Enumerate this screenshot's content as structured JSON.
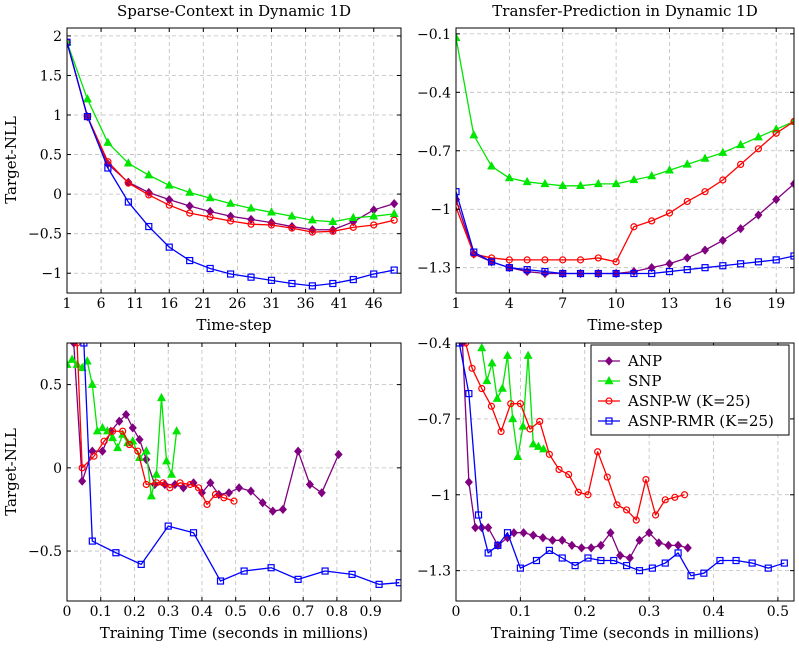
{
  "colors": {
    "ANP": "#800080",
    "SNP": "#00e600",
    "ASNP-W (K=25)": "#ff0000",
    "ASNP-RMR (K=25)": "#0000ff"
  },
  "legend": {
    "position": "top-right of bottom-right panel",
    "entries": [
      {
        "name": "ANP",
        "marker": "diamond"
      },
      {
        "name": "SNP",
        "marker": "triangle"
      },
      {
        "name": "ASNP-W (K=25)",
        "marker": "circle"
      },
      {
        "name": "ASNP-RMR (K=25)",
        "marker": "square"
      }
    ]
  },
  "chart_data": [
    {
      "id": "tl",
      "type": "line",
      "title": "Sparse-Context in Dynamic 1D",
      "xlabel": "Time-step",
      "ylabel": "Target-NLL",
      "xlim": [
        1,
        50
      ],
      "ylim": [
        -1.25,
        2.1
      ],
      "xticks": [
        1,
        6,
        11,
        16,
        21,
        26,
        31,
        36,
        41,
        46
      ],
      "xtick_labels": [
        "1",
        "6",
        "11",
        "16",
        "21",
        "26",
        "31",
        "36",
        "41",
        "46"
      ],
      "yticks": [
        -1,
        -0.5,
        0,
        0.5,
        1,
        1.5,
        2
      ],
      "ytick_labels": [
        "−1",
        "−0.5",
        "0",
        "0.5",
        "1",
        "1.5",
        "2"
      ],
      "grid": true,
      "series": [
        {
          "name": "ANP",
          "x": [
            1,
            4,
            7,
            10,
            13,
            16,
            19,
            22,
            25,
            28,
            31,
            34,
            37,
            40,
            43,
            46,
            49
          ],
          "y": [
            1.92,
            0.98,
            0.38,
            0.15,
            0.02,
            -0.07,
            -0.15,
            -0.22,
            -0.28,
            -0.32,
            -0.36,
            -0.41,
            -0.45,
            -0.45,
            -0.35,
            -0.2,
            -0.12
          ]
        },
        {
          "name": "SNP",
          "x": [
            1,
            4,
            7,
            10,
            13,
            16,
            19,
            22,
            25,
            28,
            31,
            34,
            37,
            40,
            43,
            46,
            49
          ],
          "y": [
            1.92,
            1.2,
            0.65,
            0.39,
            0.24,
            0.11,
            0.02,
            -0.05,
            -0.12,
            -0.18,
            -0.23,
            -0.28,
            -0.33,
            -0.35,
            -0.3,
            -0.28,
            -0.25
          ]
        },
        {
          "name": "ASNP-W (K=25)",
          "x": [
            1,
            4,
            7,
            10,
            13,
            16,
            19,
            22,
            25,
            28,
            31,
            34,
            37,
            40,
            43,
            46,
            49
          ],
          "y": [
            1.92,
            0.98,
            0.41,
            0.14,
            -0.01,
            -0.14,
            -0.24,
            -0.29,
            -0.34,
            -0.38,
            -0.39,
            -0.43,
            -0.48,
            -0.47,
            -0.42,
            -0.39,
            -0.33
          ]
        },
        {
          "name": "ASNP-RMR (K=25)",
          "x": [
            1,
            4,
            7,
            10,
            13,
            16,
            19,
            22,
            25,
            28,
            31,
            34,
            37,
            40,
            43,
            46,
            49
          ],
          "y": [
            1.92,
            0.98,
            0.33,
            -0.1,
            -0.41,
            -0.67,
            -0.84,
            -0.94,
            -1.01,
            -1.05,
            -1.09,
            -1.13,
            -1.16,
            -1.13,
            -1.08,
            -1.01,
            -0.96
          ]
        }
      ]
    },
    {
      "id": "tr",
      "type": "line",
      "title": "Transfer-Prediction in Dynamic 1D",
      "xlabel": "Time-step",
      "ylabel": "",
      "xlim": [
        1,
        20
      ],
      "ylim": [
        -1.43,
        -0.07
      ],
      "xticks": [
        1,
        4,
        7,
        10,
        13,
        16,
        19
      ],
      "xtick_labels": [
        "1",
        "4",
        "7",
        "10",
        "13",
        "16",
        "19"
      ],
      "yticks": [
        -1.3,
        -1,
        -0.7,
        -0.4,
        -0.1
      ],
      "ytick_labels": [
        "−1.3",
        "−1",
        "−0.7",
        "−0.4",
        "−0.1"
      ],
      "grid": true,
      "series": [
        {
          "name": "ANP",
          "x": [
            1,
            2,
            3,
            4,
            5,
            6,
            7,
            8,
            9,
            10,
            11,
            12,
            13,
            14,
            15,
            16,
            17,
            18,
            19,
            20
          ],
          "y": [
            -0.95,
            -1.23,
            -1.27,
            -1.3,
            -1.32,
            -1.33,
            -1.33,
            -1.33,
            -1.33,
            -1.33,
            -1.32,
            -1.3,
            -1.28,
            -1.25,
            -1.21,
            -1.16,
            -1.1,
            -1.03,
            -0.95,
            -0.87
          ]
        },
        {
          "name": "SNP",
          "x": [
            1,
            2,
            3,
            4,
            5,
            6,
            7,
            8,
            9,
            10,
            11,
            12,
            13,
            14,
            15,
            16,
            17,
            18,
            19,
            20
          ],
          "y": [
            -0.12,
            -0.62,
            -0.78,
            -0.84,
            -0.86,
            -0.87,
            -0.88,
            -0.88,
            -0.87,
            -0.87,
            -0.85,
            -0.83,
            -0.8,
            -0.77,
            -0.74,
            -0.71,
            -0.67,
            -0.63,
            -0.59,
            -0.55
          ]
        },
        {
          "name": "ASNP-W (K=25)",
          "x": [
            1,
            2,
            3,
            4,
            5,
            6,
            7,
            8,
            9,
            10,
            11,
            12,
            13,
            14,
            15,
            16,
            17,
            18,
            19,
            20
          ],
          "y": [
            -0.99,
            -1.23,
            -1.25,
            -1.26,
            -1.26,
            -1.26,
            -1.26,
            -1.26,
            -1.25,
            -1.27,
            -1.09,
            -1.06,
            -1.02,
            -0.96,
            -0.91,
            -0.85,
            -0.77,
            -0.69,
            -0.61,
            -0.55
          ]
        },
        {
          "name": "ASNP-RMR (K=25)",
          "x": [
            1,
            2,
            3,
            4,
            5,
            6,
            7,
            8,
            9,
            10,
            11,
            12,
            13,
            14,
            15,
            16,
            17,
            18,
            19,
            20
          ],
          "y": [
            -0.91,
            -1.22,
            -1.27,
            -1.3,
            -1.31,
            -1.32,
            -1.33,
            -1.33,
            -1.33,
            -1.33,
            -1.33,
            -1.33,
            -1.32,
            -1.31,
            -1.3,
            -1.29,
            -1.28,
            -1.27,
            -1.26,
            -1.24
          ]
        }
      ]
    },
    {
      "id": "bl",
      "type": "line",
      "title": "",
      "xlabel": "Training Time (seconds in millions)",
      "ylabel": "Target-NLL",
      "xlim": [
        0,
        0.99
      ],
      "ylim": [
        -0.8,
        0.75
      ],
      "xticks": [
        0,
        0.1,
        0.2,
        0.3,
        0.4,
        0.5,
        0.6,
        0.7,
        0.8,
        0.9
      ],
      "xtick_labels": [
        "0",
        "0.1",
        "0.2",
        "0.3",
        "0.4",
        "0.5",
        "0.6",
        "0.7",
        "0.8",
        "0.9"
      ],
      "yticks": [
        -0.5,
        0,
        0.5
      ],
      "ytick_labels": [
        "−0.5",
        "0",
        "0.5"
      ],
      "grid": true,
      "series": [
        {
          "name": "ANP",
          "x": [
            0.02,
            0.045,
            0.075,
            0.105,
            0.13,
            0.155,
            0.175,
            0.195,
            0.215,
            0.235,
            0.26,
            0.29,
            0.32,
            0.345,
            0.375,
            0.4,
            0.425,
            0.45,
            0.48,
            0.51,
            0.545,
            0.58,
            0.61,
            0.64,
            0.685,
            0.72,
            0.755,
            0.805
          ],
          "y": [
            0.75,
            -0.08,
            0.1,
            0.1,
            0.22,
            0.28,
            0.32,
            0.24,
            0.17,
            0.05,
            -0.1,
            -0.1,
            -0.1,
            -0.12,
            -0.09,
            -0.15,
            -0.09,
            -0.16,
            -0.15,
            -0.12,
            -0.14,
            -0.21,
            -0.26,
            -0.25,
            0.1,
            -0.1,
            -0.15,
            0.08
          ]
        },
        {
          "name": "SNP",
          "x": [
            0.0,
            0.015,
            0.03,
            0.045,
            0.06,
            0.075,
            0.09,
            0.105,
            0.12,
            0.135,
            0.15,
            0.165,
            0.18,
            0.195,
            0.215,
            0.235,
            0.25,
            0.265,
            0.28,
            0.295,
            0.31,
            0.325
          ],
          "y": [
            0.62,
            0.65,
            0.62,
            0.6,
            0.64,
            0.5,
            0.22,
            0.24,
            0.22,
            0.18,
            0.12,
            0.2,
            0.15,
            0.16,
            0.06,
            0.1,
            -0.17,
            -0.04,
            0.42,
            0.04,
            -0.04,
            0.22
          ]
        },
        {
          "name": "ASNP-W (K=25)",
          "x": [
            0.03,
            0.045,
            0.08,
            0.11,
            0.135,
            0.165,
            0.185,
            0.21,
            0.235,
            0.265,
            0.285,
            0.305,
            0.335,
            0.365,
            0.39,
            0.415,
            0.44,
            0.465,
            0.495
          ],
          "y": [
            0.75,
            0.0,
            0.07,
            0.16,
            0.22,
            0.22,
            0.14,
            0.1,
            -0.1,
            -0.09,
            -0.09,
            -0.12,
            -0.09,
            -0.1,
            -0.12,
            -0.22,
            -0.16,
            -0.18,
            -0.2
          ]
        },
        {
          "name": "ASNP-RMR (K=25)",
          "x": [
            0.05,
            0.075,
            0.145,
            0.22,
            0.3,
            0.375,
            0.455,
            0.525,
            0.605,
            0.685,
            0.765,
            0.845,
            0.925,
            0.985
          ],
          "y": [
            0.75,
            -0.44,
            -0.51,
            -0.58,
            -0.35,
            -0.39,
            -0.68,
            -0.62,
            -0.6,
            -0.67,
            -0.62,
            -0.64,
            -0.7,
            -0.69
          ]
        }
      ]
    },
    {
      "id": "br",
      "type": "line",
      "title": "",
      "xlabel": "Training Time (seconds in millions)",
      "ylabel": "",
      "xlim": [
        0,
        0.525
      ],
      "ylim": [
        -1.42,
        -0.4
      ],
      "xticks": [
        0,
        0.1,
        0.2,
        0.3,
        0.4,
        0.5
      ],
      "xtick_labels": [
        "0",
        "0.1",
        "0.2",
        "0.3",
        "0.4",
        "0.5"
      ],
      "yticks": [
        -1.3,
        -1,
        -0.7,
        -0.4
      ],
      "ytick_labels": [
        "−1.3",
        "−1",
        "−0.7",
        "−0.4"
      ],
      "grid": true,
      "series": [
        {
          "name": "ANP",
          "x": [
            0.01,
            0.02,
            0.03,
            0.04,
            0.05,
            0.065,
            0.08,
            0.09,
            0.105,
            0.12,
            0.135,
            0.15,
            0.165,
            0.18,
            0.195,
            0.21,
            0.225,
            0.24,
            0.255,
            0.27,
            0.285,
            0.3,
            0.315,
            0.33,
            0.345,
            0.36
          ],
          "y": [
            -0.4,
            -0.95,
            -1.13,
            -1.13,
            -1.13,
            -1.2,
            -1.17,
            -1.15,
            -1.15,
            -1.16,
            -1.17,
            -1.18,
            -1.18,
            -1.2,
            -1.21,
            -1.21,
            -1.2,
            -1.15,
            -1.24,
            -1.25,
            -1.18,
            -1.15,
            -1.19,
            -1.2,
            -1.2,
            -1.21
          ]
        },
        {
          "name": "SNP",
          "x": [
            0.04,
            0.048,
            0.056,
            0.064,
            0.072,
            0.08,
            0.088,
            0.096,
            0.104,
            0.112,
            0.12,
            0.128,
            0.136
          ],
          "y": [
            -0.42,
            -0.55,
            -0.48,
            -0.62,
            -0.58,
            -0.45,
            -0.7,
            -0.85,
            -0.73,
            -0.45,
            -0.8,
            -0.81,
            -0.82
          ]
        },
        {
          "name": "ASNP-W (K=25)",
          "x": [
            0.015,
            0.025,
            0.04,
            0.055,
            0.07,
            0.085,
            0.1,
            0.115,
            0.13,
            0.145,
            0.16,
            0.175,
            0.19,
            0.205,
            0.22,
            0.235,
            0.25,
            0.265,
            0.28,
            0.295,
            0.31,
            0.325,
            0.34,
            0.355
          ],
          "y": [
            -0.4,
            -0.5,
            -0.58,
            -0.65,
            -0.75,
            -0.64,
            -0.64,
            -0.74,
            -0.71,
            -0.84,
            -0.9,
            -0.92,
            -0.99,
            -1.0,
            -0.83,
            -0.93,
            -1.04,
            -1.06,
            -1.1,
            -0.94,
            -1.08,
            -1.02,
            -1.01,
            -1.0
          ]
        },
        {
          "name": "ASNP-RMR (K=25)",
          "x": [
            0.005,
            0.02,
            0.035,
            0.05,
            0.065,
            0.08,
            0.1,
            0.125,
            0.145,
            0.165,
            0.185,
            0.205,
            0.225,
            0.245,
            0.265,
            0.285,
            0.305,
            0.325,
            0.345,
            0.365,
            0.385,
            0.41,
            0.435,
            0.46,
            0.485,
            0.51
          ],
          "y": [
            -0.4,
            -0.6,
            -1.08,
            -1.23,
            -1.2,
            -1.15,
            -1.29,
            -1.26,
            -1.22,
            -1.25,
            -1.28,
            -1.25,
            -1.26,
            -1.26,
            -1.28,
            -1.3,
            -1.29,
            -1.27,
            -1.23,
            -1.32,
            -1.31,
            -1.26,
            -1.26,
            -1.27,
            -1.29,
            -1.27
          ]
        }
      ]
    }
  ]
}
